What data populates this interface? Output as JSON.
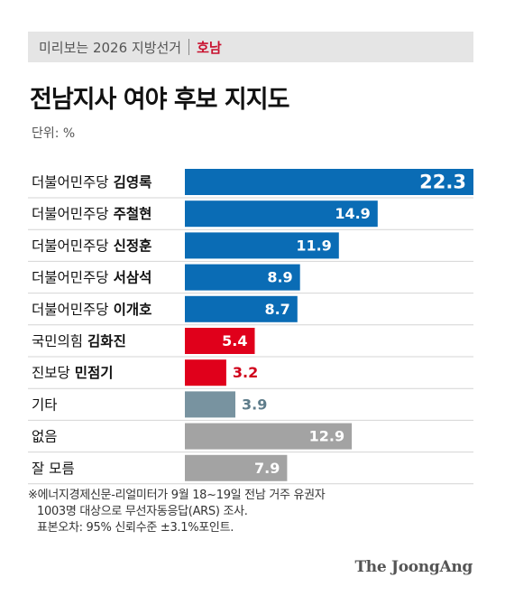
{
  "header": {
    "series": "미리보는 2026 지방선거",
    "region": "호남"
  },
  "title": "전남지사 여야 후보 지지도",
  "unit": "단위: %",
  "chart_data": {
    "type": "bar",
    "orientation": "horizontal",
    "title": "전남지사 여야 후보 지지도",
    "unit": "%",
    "xlim": [
      0,
      22.3
    ],
    "rows": [
      {
        "party": "더불어민주당",
        "name": "김영록",
        "value": 22.3,
        "color": "#0a6cb5",
        "label_color": "#ffffff"
      },
      {
        "party": "더불어민주당",
        "name": "주철현",
        "value": 14.9,
        "color": "#0a6cb5",
        "label_color": "#ffffff"
      },
      {
        "party": "더불어민주당",
        "name": "신정훈",
        "value": 11.9,
        "color": "#0a6cb5",
        "label_color": "#ffffff"
      },
      {
        "party": "더불어민주당",
        "name": "서삼석",
        "value": 8.9,
        "color": "#0a6cb5",
        "label_color": "#ffffff"
      },
      {
        "party": "더불어민주당",
        "name": "이개호",
        "value": 8.7,
        "color": "#0a6cb5",
        "label_color": "#ffffff"
      },
      {
        "party": "국민의힘",
        "name": "김화진",
        "value": 5.4,
        "color": "#e0001b",
        "label_color": "#ffffff"
      },
      {
        "party": "진보당",
        "name": "민점기",
        "value": 3.2,
        "color": "#e0001b",
        "label_color": "#d0021b"
      },
      {
        "party": "기타",
        "name": "",
        "value": 3.9,
        "color": "#7893a0",
        "label_color": "#5f7d8b"
      },
      {
        "party": "없음",
        "name": "",
        "value": 12.9,
        "color": "#a3a3a3",
        "label_color": "#ffffff"
      },
      {
        "party": "잘 모름",
        "name": "",
        "value": 7.9,
        "color": "#a3a3a3",
        "label_color": "#ffffff"
      }
    ]
  },
  "footnote": [
    "※에너지경제신문-리얼미터가 9월 18~19일 전남 거주 유권자",
    "1003명 대상으로 무선자동응답(ARS) 조사.",
    "표본오차: 95% 신뢰수준 ±3.1%포인트."
  ],
  "logo": "The JoongAng"
}
